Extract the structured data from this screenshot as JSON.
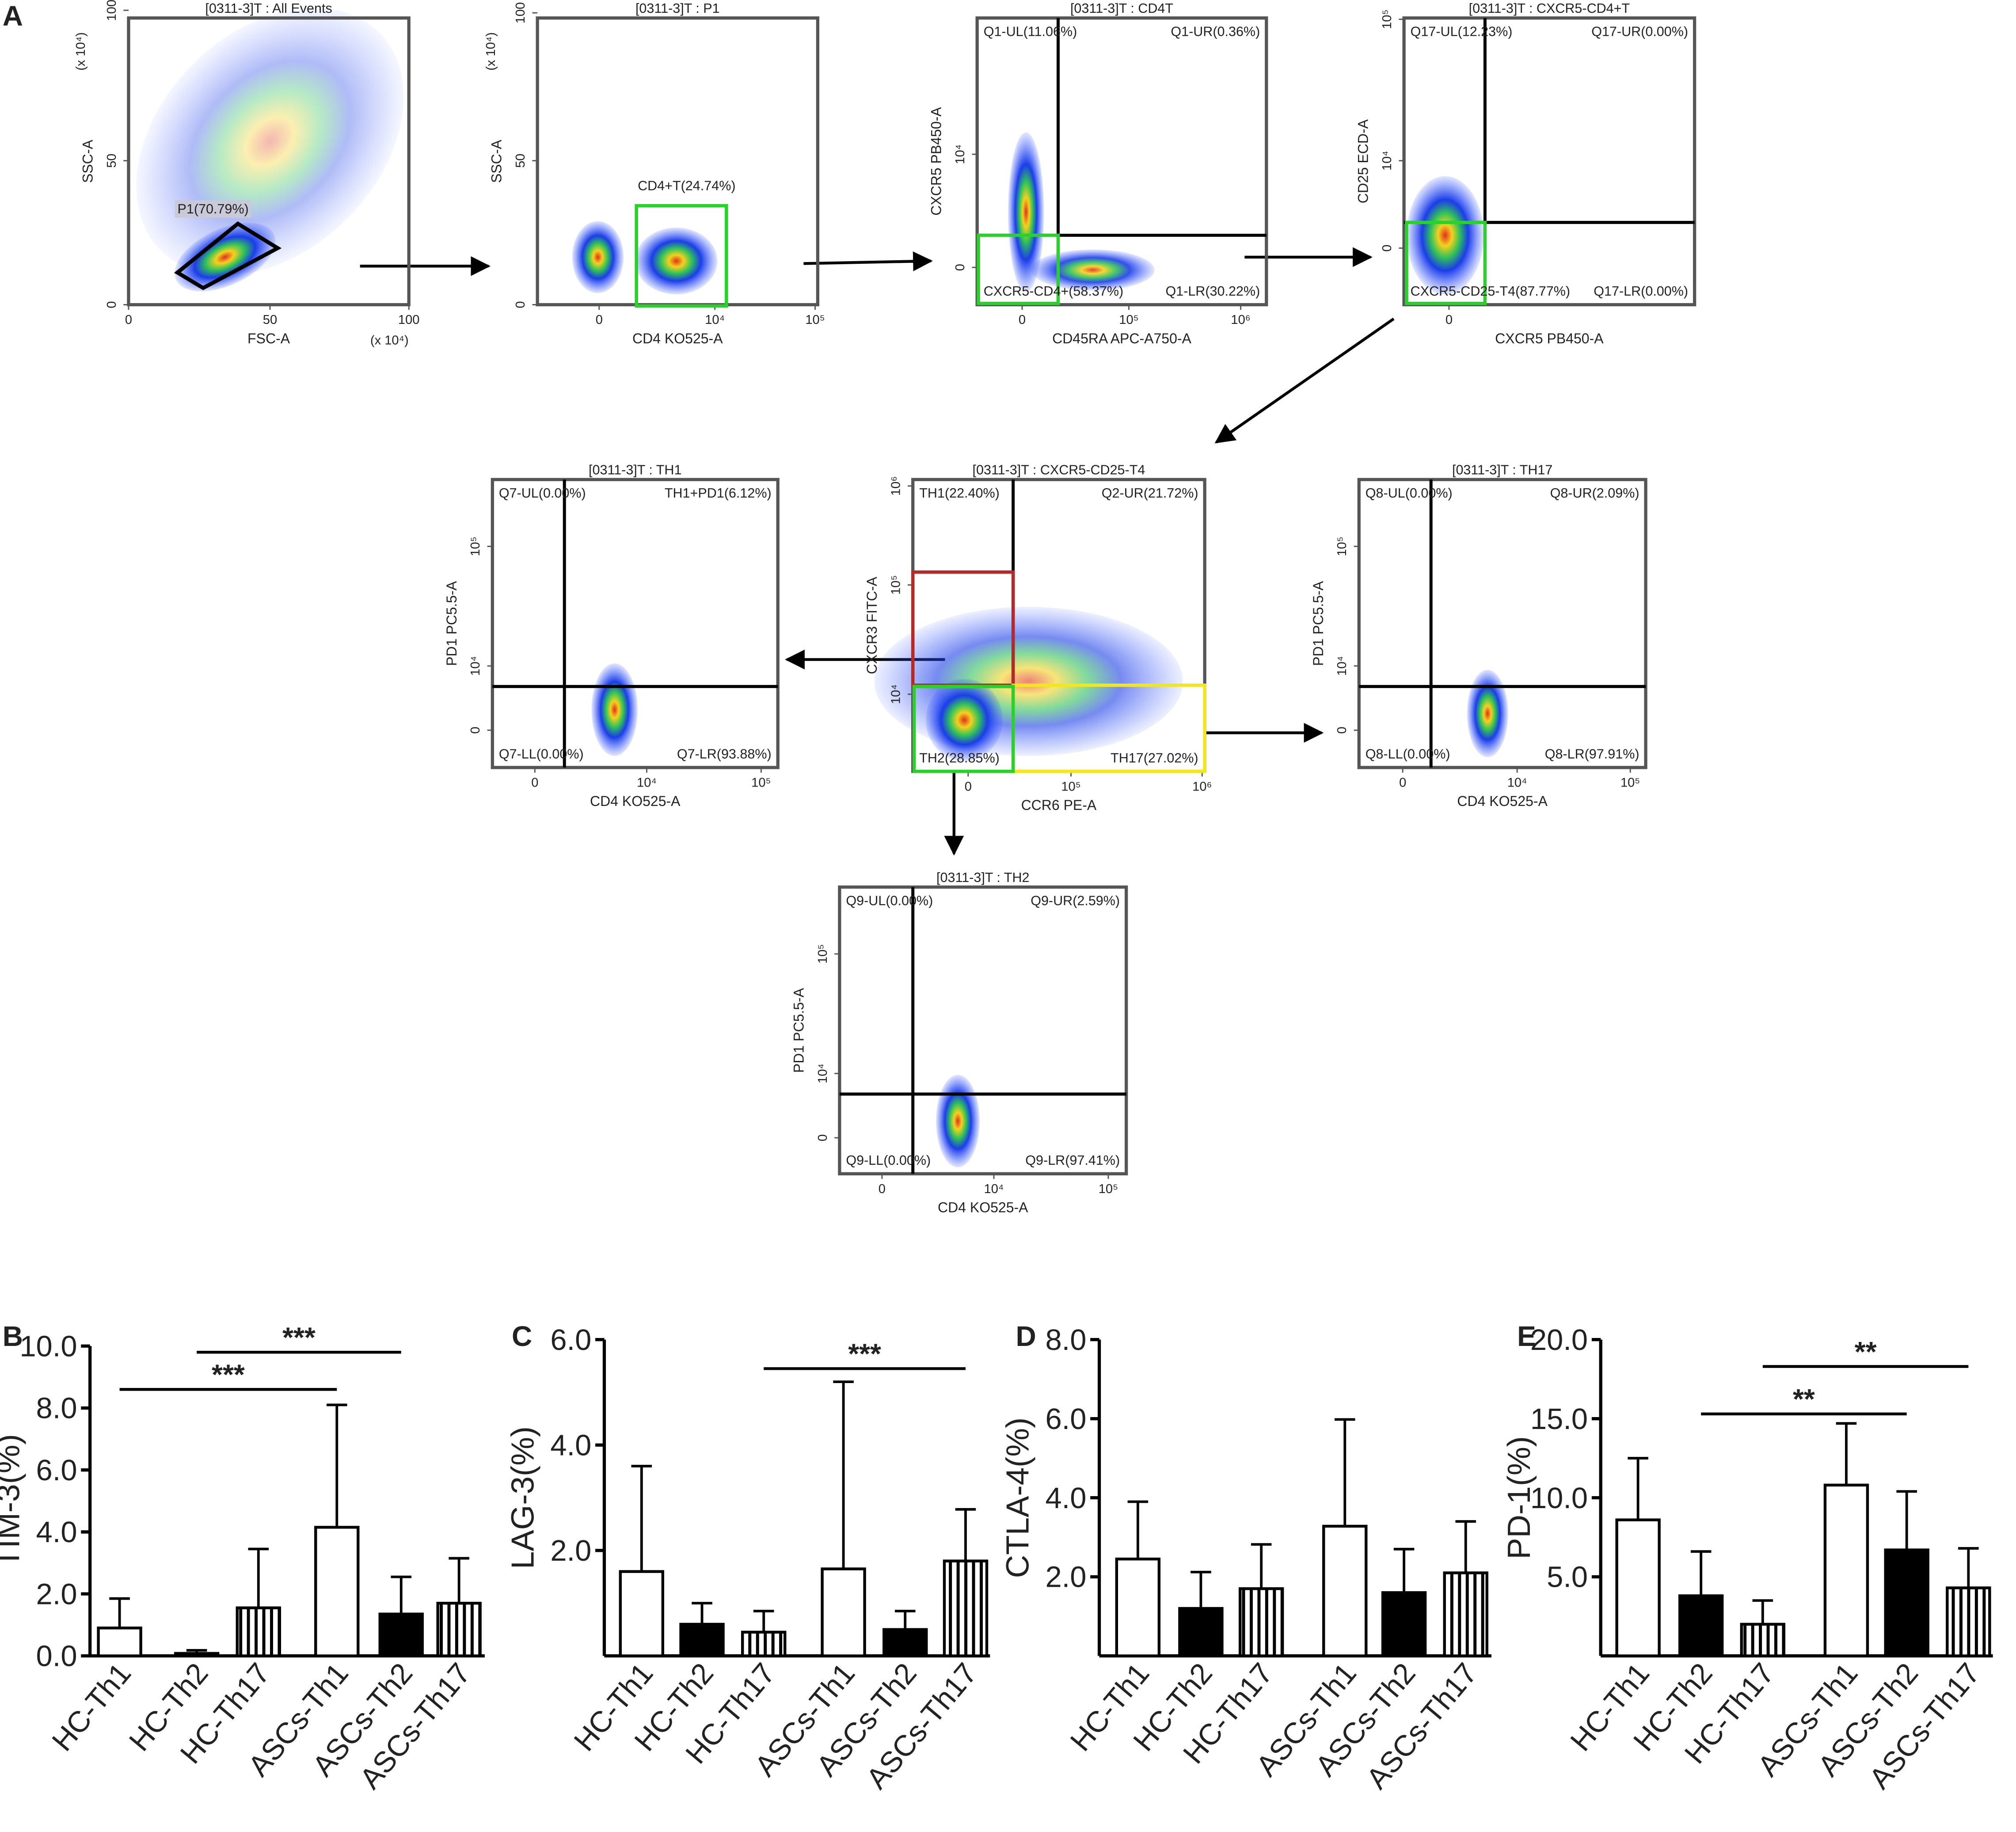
{
  "panel_labels": [
    "A",
    "B",
    "C",
    "D",
    "E"
  ],
  "flow_panels": [
    {
      "title": "[0311-3]T : All Events",
      "x_label": "FSC-A",
      "y_label": "SSC-A",
      "x_ticks": [
        "0",
        "50",
        "100"
      ],
      "y_ticks": [
        "0",
        "50",
        "100"
      ],
      "x_scale_note": "(x 10⁴)",
      "y_scale_note": "(x 10⁴)",
      "gates": [
        "P1(70.79%)"
      ]
    },
    {
      "title": "[0311-3]T : P1",
      "x_label": "CD4 KO525-A",
      "y_label": "SSC-A",
      "x_ticks": [
        "0",
        "10⁴",
        "10⁵"
      ],
      "y_ticks": [
        "0",
        "50",
        "100"
      ],
      "y_scale_note": "(x 10⁴)",
      "gates": [
        "CD4+T(24.74%)"
      ]
    },
    {
      "title": "[0311-3]T : CD4T",
      "x_label": "CD45RA APC-A750-A",
      "y_label": "CXCR5 PB450-A",
      "x_ticks": [
        "0",
        "10⁵",
        "10⁶"
      ],
      "y_ticks": [
        "0",
        "10⁴"
      ],
      "gates": [
        "Q1-UL(11.06%)",
        "Q1-UR(0.36%)",
        "CXCR5-CD4+(58.37%)",
        "Q1-LR(30.22%)"
      ]
    },
    {
      "title": "[0311-3]T : CXCR5-CD4+T",
      "x_label": "CXCR5 PB450-A",
      "y_label": "CD25 ECD-A",
      "x_ticks": [
        "0"
      ],
      "y_ticks": [
        "0",
        "10⁴",
        "10⁵"
      ],
      "gates": [
        "Q17-UL(12.23%)",
        "Q17-UR(0.00%)",
        "CXCR5-CD25-T4(87.77%)",
        "Q17-LR(0.00%)"
      ]
    },
    {
      "title": "[0311-3]T : TH1",
      "x_label": "CD4 KO525-A",
      "y_label": "PD1 PC5.5-A",
      "x_ticks": [
        "0",
        "10⁴",
        "10⁵"
      ],
      "y_ticks": [
        "0",
        "10⁴",
        "10⁵"
      ],
      "gates": [
        "Q7-UL(0.00%)",
        "TH1+PD1(6.12%)",
        "Q7-LL(0.00%)",
        "Q7-LR(93.88%)"
      ]
    },
    {
      "title": "[0311-3]T : CXCR5-CD25-T4",
      "x_label": "CCR6 PE-A",
      "y_label": "CXCR3 FITC-A",
      "x_ticks": [
        "0",
        "10⁵",
        "10⁶"
      ],
      "y_ticks": [
        "10⁴",
        "10⁵",
        "10⁶"
      ],
      "gates": [
        "TH1(22.40%)",
        "Q2-UR(21.72%)",
        "TH2(28.85%)",
        "TH17(27.02%)"
      ]
    },
    {
      "title": "[0311-3]T : TH17",
      "x_label": "CD4 KO525-A",
      "y_label": "PD1 PC5.5-A",
      "x_ticks": [
        "0",
        "10⁴",
        "10⁵"
      ],
      "y_ticks": [
        "0",
        "10⁴",
        "10⁵"
      ],
      "gates": [
        "Q8-UL(0.00%)",
        "Q8-UR(2.09%)",
        "Q8-LL(0.00%)",
        "Q8-LR(97.91%)"
      ]
    },
    {
      "title": "[0311-3]T : TH2",
      "x_label": "CD4 KO525-A",
      "y_label": "PD1 PC5.5-A",
      "x_ticks": [
        "0",
        "10⁴",
        "10⁵"
      ],
      "y_ticks": [
        "0",
        "10⁴",
        "10⁵"
      ],
      "gates": [
        "Q9-UL(0.00%)",
        "Q9-UR(2.59%)",
        "Q9-LL(0.00%)",
        "Q9-LR(97.41%)"
      ]
    }
  ],
  "chart_data": [
    {
      "type": "bar",
      "y_label": "TIM-3(%)",
      "categories": [
        "HC-Th1",
        "HC-Th2",
        "HC-Th17",
        "ASCs-Th1",
        "ASCs-Th2",
        "ASCs-Th17"
      ],
      "values": [
        0.9,
        0.08,
        1.55,
        4.15,
        1.35,
        1.7
      ],
      "errors": [
        0.95,
        0.1,
        1.9,
        3.95,
        1.2,
        1.45
      ],
      "bar_styles": [
        "open",
        "solid",
        "striped",
        "open",
        "solid",
        "striped"
      ],
      "ylim": [
        0,
        10
      ],
      "yticks": [
        {
          "value": 0,
          "label": "0.0"
        },
        {
          "value": 2,
          "label": "2.0"
        },
        {
          "value": 4,
          "label": "4.0"
        },
        {
          "value": 6,
          "label": "6.0"
        },
        {
          "value": 8,
          "label": "8.0"
        },
        {
          "value": 10,
          "label": "10.0"
        }
      ],
      "annotations": [
        {
          "text": "***",
          "from": 0,
          "to": 3,
          "y": 8.6
        },
        {
          "text": "***",
          "from": 1,
          "to": 4,
          "y": 9.8
        }
      ]
    },
    {
      "type": "bar",
      "y_label": "LAG-3(%)",
      "categories": [
        "HC-Th1",
        "HC-Th2",
        "HC-Th17",
        "ASCs-Th1",
        "ASCs-Th2",
        "ASCs-Th17"
      ],
      "values": [
        1.6,
        0.6,
        0.45,
        1.65,
        0.5,
        1.8
      ],
      "errors": [
        2.0,
        0.4,
        0.4,
        3.55,
        0.35,
        0.98
      ],
      "bar_styles": [
        "open",
        "solid",
        "striped",
        "open",
        "solid",
        "striped"
      ],
      "ylim": [
        0,
        6
      ],
      "yticks": [
        {
          "value": 2,
          "label": "2.0"
        },
        {
          "value": 4,
          "label": "4.0"
        },
        {
          "value": 6,
          "label": "6.0"
        }
      ],
      "annotations": [
        {
          "text": "***",
          "from": 2,
          "to": 5,
          "y": 5.45
        }
      ]
    },
    {
      "type": "bar",
      "y_label": "CTLA-4(%)",
      "categories": [
        "HC-Th1",
        "HC-Th2",
        "HC-Th17",
        "ASCs-Th1",
        "ASCs-Th2",
        "ASCs-Th17"
      ],
      "values": [
        2.45,
        1.2,
        1.7,
        3.28,
        1.6,
        2.1
      ],
      "errors": [
        1.45,
        0.92,
        1.12,
        2.7,
        1.1,
        1.3
      ],
      "bar_styles": [
        "open",
        "solid",
        "striped",
        "open",
        "solid",
        "striped"
      ],
      "ylim": [
        0,
        8
      ],
      "yticks": [
        {
          "value": 2,
          "label": "2.0"
        },
        {
          "value": 4,
          "label": "4.0"
        },
        {
          "value": 6,
          "label": "6.0"
        },
        {
          "value": 8,
          "label": "8.0"
        }
      ]
    },
    {
      "type": "bar",
      "y_label": "PD-1(%)",
      "categories": [
        "HC-Th1",
        "HC-Th2",
        "HC-Th17",
        "ASCs-Th1",
        "ASCs-Th2",
        "ASCs-Th17"
      ],
      "values": [
        8.6,
        3.8,
        2.0,
        10.8,
        6.7,
        4.3
      ],
      "errors": [
        3.9,
        2.8,
        1.5,
        3.9,
        3.7,
        2.5
      ],
      "bar_styles": [
        "open",
        "solid",
        "striped",
        "open",
        "solid",
        "striped"
      ],
      "ylim": [
        0,
        20
      ],
      "yticks": [
        {
          "value": 5,
          "label": "5.0"
        },
        {
          "value": 10,
          "label": "10.0"
        },
        {
          "value": 15,
          "label": "15.0"
        },
        {
          "value": 20,
          "label": "20.0"
        }
      ],
      "annotations": [
        {
          "text": "**",
          "from": 1,
          "to": 4,
          "y": 15.3
        },
        {
          "text": "**",
          "from": 2,
          "to": 5,
          "y": 18.3
        }
      ]
    }
  ]
}
